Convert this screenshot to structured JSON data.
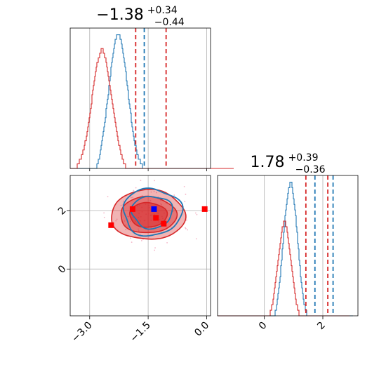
{
  "chart_data": [
    {
      "panel": "marginal-top",
      "type": "histogram",
      "title": {
        "main": "−1.38",
        "sup": "+0.34",
        "sub": "−0.44"
      },
      "xlim": [
        -3.5,
        0.1
      ],
      "x_grid": [
        -3.0,
        -1.5,
        0.0
      ],
      "series": [
        {
          "color": "#1f77b4",
          "values": [
            0,
            0,
            0,
            0,
            0,
            0,
            0,
            0,
            0,
            0,
            0,
            0,
            0,
            0,
            0,
            0,
            0,
            0,
            0,
            0,
            0,
            0,
            0,
            0,
            0,
            0,
            0,
            0,
            0,
            0,
            0,
            0,
            0,
            0,
            0,
            0,
            0,
            0,
            1,
            1,
            2,
            2,
            3,
            4,
            5,
            6,
            7,
            8,
            9,
            10,
            11,
            13,
            14,
            15,
            16,
            18,
            19,
            20,
            22,
            23,
            24,
            25,
            26,
            27,
            28,
            28,
            29,
            29,
            29,
            29,
            29,
            28,
            28,
            27,
            26,
            25,
            24,
            23,
            22,
            21,
            19,
            18,
            17,
            15,
            14,
            13,
            12,
            10,
            9,
            8,
            7,
            6,
            5,
            5,
            4,
            3,
            3,
            2,
            2,
            2,
            1,
            1,
            1,
            0,
            0,
            0,
            0,
            0,
            0,
            0,
            0,
            0,
            0,
            0,
            0,
            0,
            0,
            0,
            0,
            0,
            0,
            0,
            0,
            0,
            0,
            0,
            0,
            0,
            0,
            0,
            0,
            0,
            0,
            0,
            0,
            0,
            0,
            0,
            0,
            0,
            0,
            0,
            0,
            0,
            0,
            0,
            0,
            0,
            0,
            0,
            0,
            0,
            0,
            0,
            0,
            0,
            0,
            0,
            0,
            0,
            0,
            0,
            0,
            0,
            0,
            0,
            0,
            0,
            0,
            0,
            0,
            0,
            0,
            0,
            0,
            0,
            0,
            0,
            0,
            0,
            0,
            0,
            0,
            0,
            0,
            0,
            0,
            0,
            0,
            0,
            0,
            0,
            0,
            0,
            0,
            0,
            0,
            0,
            0,
            0,
            0,
            0,
            0,
            0,
            0,
            0,
            0,
            0,
            0,
            0,
            0,
            0,
            0,
            0,
            0,
            0,
            0,
            0,
            0,
            0,
            0,
            0,
            0,
            0,
            0,
            0,
            0
          ]
        },
        {
          "color": "#d62728",
          "values": [
            0,
            0,
            0,
            0,
            0,
            0,
            0,
            0,
            0,
            0,
            1,
            1,
            1,
            2,
            2,
            2,
            3,
            3,
            4,
            4,
            5,
            6,
            6,
            7,
            8,
            9,
            10,
            11,
            12,
            13,
            14,
            16,
            17,
            18,
            19,
            20,
            21,
            22,
            23,
            23,
            24,
            24,
            25,
            25,
            26,
            26,
            26,
            25,
            25,
            24,
            24,
            23,
            22,
            21,
            20,
            19,
            18,
            17,
            16,
            15,
            14,
            13,
            12,
            11,
            10,
            9,
            8,
            7,
            6,
            5,
            5,
            4,
            3,
            3,
            2,
            2,
            1,
            1,
            1,
            0,
            0,
            0,
            0,
            0,
            0,
            0,
            0,
            0,
            0,
            0,
            0,
            0,
            0,
            0,
            0,
            0,
            0,
            0,
            0,
            0,
            0,
            0,
            0,
            0,
            0,
            0,
            0,
            0,
            0,
            0,
            0,
            0,
            0,
            0,
            0,
            0,
            0,
            0,
            0,
            0,
            0,
            0,
            0,
            0,
            0,
            0,
            0,
            0,
            0,
            0,
            0,
            0,
            0,
            0,
            0,
            0,
            0,
            0,
            0,
            0,
            0,
            0,
            0,
            0,
            0,
            0,
            0,
            0,
            0,
            0,
            0,
            0,
            0,
            0,
            0,
            0,
            0,
            0,
            0,
            0,
            0,
            0,
            0,
            0,
            0,
            0,
            0,
            0,
            0,
            0,
            0,
            0,
            0,
            0,
            0,
            0,
            0,
            0,
            0,
            0,
            0,
            0,
            0,
            0,
            0,
            0,
            0,
            0,
            0,
            0,
            0,
            0,
            0,
            0,
            0,
            0,
            0,
            0,
            0,
            0,
            0,
            0,
            0,
            0,
            0,
            0,
            0,
            0,
            0,
            0,
            0,
            0,
            0,
            0,
            0,
            0,
            0,
            0,
            0,
            0,
            0,
            0,
            0,
            0,
            0,
            0,
            0,
            0,
            0,
            0,
            0,
            0,
            0
          ]
        }
      ],
      "bin_start": -3.5,
      "bin_width": 0.018,
      "quantile_lines": [
        {
          "x": -1.82,
          "color": "#d62728"
        },
        {
          "x": -1.6,
          "color": "#1f77b4"
        },
        {
          "x": -1.04,
          "color": "#d62728"
        }
      ]
    },
    {
      "panel": "joint",
      "type": "contour",
      "xlim": [
        -3.5,
        0.1
      ],
      "ylim": [
        -1.6,
        3.2
      ],
      "x_ticks": [
        "−3.0",
        "−1.5",
        "0.0"
      ],
      "x_tick_values": [
        -3.0,
        -1.5,
        0.0
      ],
      "y_ticks": [
        "0",
        "2"
      ],
      "y_tick_values": [
        0,
        2
      ],
      "contours_red": {
        "center": [
          -1.5,
          1.85
        ],
        "radii": [
          [
            0.95,
            0.85
          ],
          [
            0.72,
            0.62
          ],
          [
            0.48,
            0.42
          ]
        ],
        "color": "#d62728"
      },
      "contours_blue": {
        "center": [
          -1.4,
          1.95
        ],
        "radii": [
          [
            0.75,
            0.8
          ],
          [
            0.52,
            0.55
          ]
        ],
        "color": "#1f77b4"
      },
      "markers_red": [
        [
          -2.45,
          1.5
        ],
        [
          -1.9,
          2.05
        ],
        [
          -1.3,
          1.75
        ],
        [
          -1.1,
          1.55
        ],
        [
          -0.05,
          2.05
        ]
      ],
      "markers_blue": [
        [
          -1.35,
          2.05
        ]
      ]
    },
    {
      "panel": "marginal-right",
      "type": "histogram",
      "title": {
        "main": "1.78",
        "sup": "+0.39",
        "sub": "−0.36"
      },
      "xlim": [
        -1.6,
        3.2
      ],
      "x_ticks": [
        "0",
        "2"
      ],
      "x_tick_values": [
        0,
        2
      ],
      "series": [
        {
          "color": "#1f77b4",
          "values": [
            0,
            0,
            0,
            0,
            0,
            0,
            0,
            0,
            0,
            0,
            0,
            0,
            0,
            0,
            0,
            0,
            0,
            0,
            0,
            0,
            0,
            0,
            0,
            0,
            0,
            0,
            0,
            0,
            0,
            0,
            0,
            0,
            0,
            0,
            0,
            0,
            0,
            0,
            0,
            0,
            0,
            0,
            0,
            0,
            0,
            0,
            0,
            0,
            0,
            0,
            0,
            0,
            0,
            0,
            0,
            0,
            0,
            0,
            0,
            0,
            0,
            0,
            0,
            0,
            0,
            0,
            0,
            0,
            0,
            0,
            0,
            0,
            0,
            0,
            0,
            0,
            0,
            0,
            0,
            0,
            0,
            0,
            1,
            1,
            2,
            3,
            4,
            5,
            6,
            7,
            9,
            10,
            12,
            13,
            15,
            16,
            18,
            19,
            20,
            21,
            22,
            23,
            23,
            24,
            24,
            24,
            23,
            22,
            21,
            20,
            19,
            18,
            16,
            15,
            13,
            12,
            10,
            9,
            7,
            6,
            5,
            4,
            3,
            2,
            2,
            1,
            1,
            0,
            0,
            0,
            0,
            0,
            0,
            0,
            0,
            0,
            0,
            0,
            0,
            0,
            0,
            0,
            0,
            0,
            0,
            0,
            0,
            0,
            0,
            0,
            0,
            0,
            0,
            0,
            0,
            0,
            0,
            0,
            0,
            0,
            0,
            0,
            0,
            0,
            0,
            0,
            0,
            0,
            0,
            0,
            0,
            0,
            0,
            0,
            0,
            0,
            0,
            0,
            0,
            0,
            0,
            0,
            0,
            0,
            0,
            0,
            0,
            0,
            0,
            0,
            0,
            0,
            0
          ]
        },
        {
          "color": "#d62728",
          "values": [
            0,
            0,
            0,
            0,
            0,
            0,
            0,
            0,
            0,
            0,
            0,
            0,
            0,
            0,
            0,
            0,
            0,
            0,
            0,
            0,
            0,
            0,
            0,
            0,
            0,
            0,
            0,
            0,
            0,
            0,
            0,
            0,
            0,
            0,
            0,
            0,
            0,
            0,
            0,
            0,
            0,
            0,
            0,
            0,
            0,
            0,
            0,
            0,
            0,
            0,
            0,
            0,
            0,
            0,
            0,
            0,
            0,
            0,
            0,
            0,
            0,
            0,
            0,
            0,
            0,
            0,
            0,
            0,
            0,
            0,
            0,
            0,
            0,
            0,
            0,
            1,
            1,
            2,
            2,
            3,
            4,
            5,
            6,
            7,
            8,
            9,
            10,
            11,
            12,
            13,
            14,
            15,
            16,
            16,
            17,
            17,
            17,
            16,
            16,
            15,
            14,
            13,
            12,
            11,
            10,
            9,
            8,
            7,
            6,
            5,
            4,
            3,
            2,
            2,
            1,
            1,
            0,
            0,
            0,
            0,
            0,
            0,
            0,
            0,
            0,
            0,
            0,
            0,
            0,
            0,
            0,
            0,
            0,
            0,
            0,
            0,
            0,
            0,
            0,
            0,
            0,
            0,
            0,
            0,
            0,
            0,
            0,
            0,
            0,
            0,
            0,
            0,
            0,
            0,
            0,
            0,
            0,
            0,
            0,
            0,
            0,
            0,
            0,
            0,
            0,
            0,
            0,
            0,
            0,
            0,
            0,
            0,
            0,
            0,
            0,
            0,
            0,
            0,
            0,
            0,
            0,
            0,
            0,
            0,
            0,
            0,
            0,
            0
          ]
        }
      ],
      "bin_start": -1.6,
      "bin_width": 0.024,
      "quantile_lines": [
        {
          "x": 1.42,
          "color": "#d62728"
        },
        {
          "x": 1.73,
          "color": "#1f77b4"
        },
        {
          "x": 2.17,
          "color": "#d62728"
        },
        {
          "x": 2.35,
          "color": "#1f77b4"
        }
      ]
    }
  ]
}
